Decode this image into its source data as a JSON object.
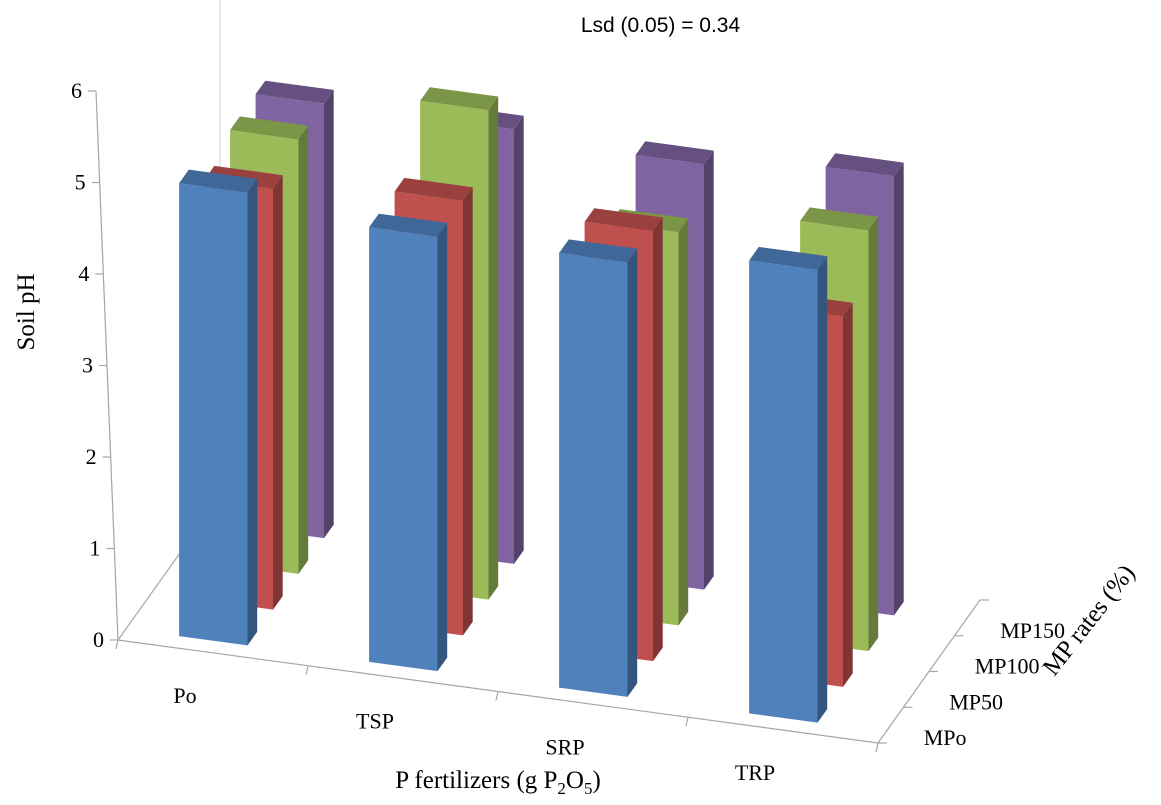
{
  "chart_data": {
    "type": "bar",
    "subtype": "3d-column",
    "annotation": "Lsd (0.05) = 0.34",
    "ylabel": "Soil pH",
    "xlabel": "P fertilizers (g P2O5)",
    "xlabel_parts": {
      "main": "P fertilizers (g P",
      "sub": "2",
      "tail": "O",
      "sub2": "5",
      "close": ")"
    },
    "zlabel": "MP rates (%)",
    "ylim": [
      0,
      6
    ],
    "yticks": [
      "0",
      "1",
      "2",
      "3",
      "4",
      "5",
      "6"
    ],
    "categories": [
      "Po",
      "TSP",
      "SRP",
      "TRP"
    ],
    "series": [
      {
        "name": "MPo",
        "color": "#4f81bd",
        "values": [
          4.95,
          4.75,
          4.75,
          4.95
        ]
      },
      {
        "name": "MP50",
        "color": "#c0504d",
        "values": [
          4.6,
          4.75,
          4.7,
          4.05
        ]
      },
      {
        "name": "MP100",
        "color": "#9bbb59",
        "values": [
          4.75,
          5.35,
          4.3,
          4.6
        ]
      },
      {
        "name": "MP150",
        "color": "#8064a2",
        "values": [
          4.75,
          4.75,
          4.65,
          4.8
        ]
      }
    ],
    "grid": false,
    "legend": "depth-axis"
  }
}
